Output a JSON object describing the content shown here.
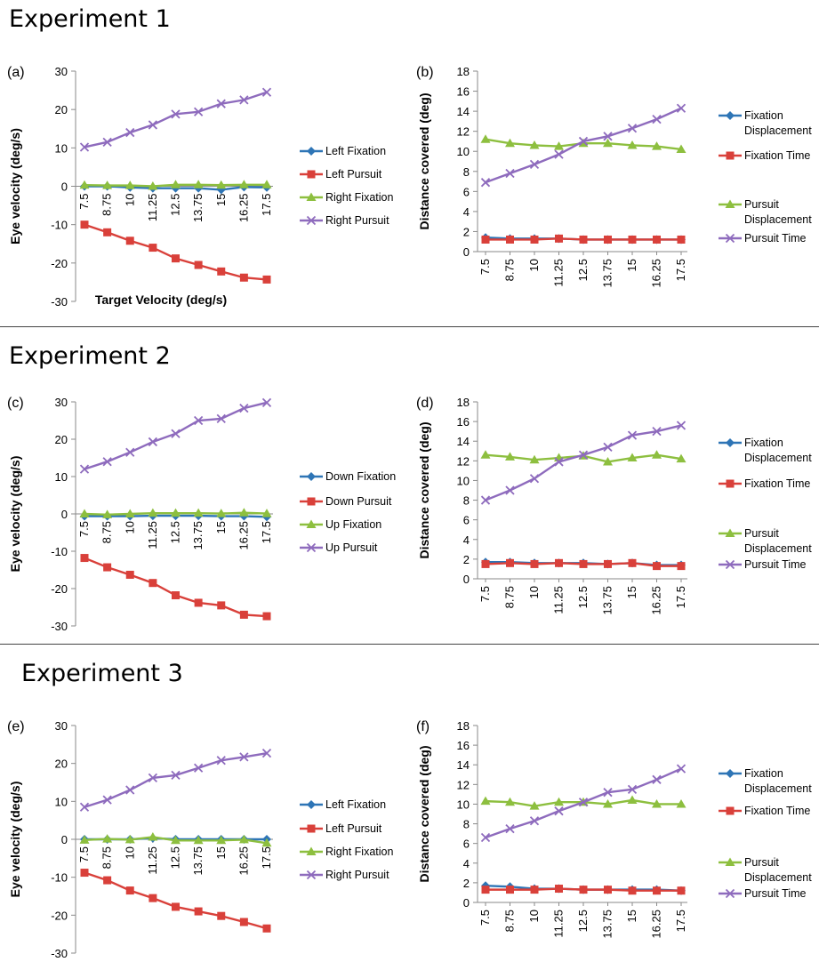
{
  "experiments": [
    {
      "title": "Experiment 1"
    },
    {
      "title": "Experiment 2"
    },
    {
      "title": "Experiment 3"
    }
  ],
  "series_colors": {
    "fixation_blue": "#2e75b6",
    "pursuit_red": "#d9403a",
    "fixation_green": "#8dbf3f",
    "pursuit_purple": "#8e6bbd"
  },
  "chart_data": [
    {
      "panel": "(a)",
      "type": "line",
      "ylabel": "Eye velocity (deg/s)",
      "xlabel": "Target Velocity (deg/s)",
      "ylim": [
        -30,
        30
      ],
      "yticks": [
        -30,
        -20,
        -10,
        0,
        10,
        20,
        30
      ],
      "categories": [
        "7.5",
        "8.75",
        "10",
        "11.25",
        "12.5",
        "13.75",
        "15",
        "16.25",
        "17.5"
      ],
      "legend": "right",
      "grid": false,
      "series": [
        {
          "name": "Left Fixation",
          "color": "#2e75b6",
          "marker": "diamond",
          "values": [
            0,
            0,
            -0.3,
            -0.5,
            -0.5,
            -0.5,
            -0.9,
            -0.2,
            -0.3
          ]
        },
        {
          "name": "Left Pursuit",
          "color": "#d9403a",
          "marker": "square",
          "values": [
            -10,
            -12,
            -14.2,
            -16,
            -18.8,
            -20.5,
            -22.2,
            -23.8,
            -24.3
          ]
        },
        {
          "name": "Right Fixation",
          "color": "#8dbf3f",
          "marker": "triangle",
          "values": [
            0.3,
            0.2,
            0.2,
            0,
            0.4,
            0.4,
            0.3,
            0.4,
            0.4
          ]
        },
        {
          "name": "Right Pursuit",
          "color": "#8e6bbd",
          "marker": "x",
          "values": [
            10.2,
            11.5,
            14,
            16,
            18.8,
            19.4,
            21.5,
            22.5,
            24.5
          ]
        }
      ]
    },
    {
      "panel": "(b)",
      "type": "line",
      "ylabel": "Distance covered (deg)",
      "xlabel": "",
      "ylim": [
        0,
        18
      ],
      "yticks": [
        0,
        2,
        4,
        6,
        8,
        10,
        12,
        14,
        16,
        18
      ],
      "categories": [
        "7.5",
        "8.75",
        "10",
        "11.25",
        "12.5",
        "13.75",
        "15",
        "16.25",
        "17.5"
      ],
      "legend": "right",
      "grid": false,
      "series": [
        {
          "name": "Fixation Displacement",
          "color": "#2e75b6",
          "marker": "diamond",
          "values": [
            1.4,
            1.3,
            1.3,
            1.3,
            1.2,
            1.2,
            1.2,
            1.2,
            1.2
          ]
        },
        {
          "name": "Fixation Time",
          "color": "#d9403a",
          "marker": "square",
          "values": [
            1.2,
            1.2,
            1.2,
            1.3,
            1.2,
            1.2,
            1.2,
            1.2,
            1.2
          ]
        },
        {
          "name": "Pursuit Displacement",
          "color": "#8dbf3f",
          "marker": "triangle",
          "values": [
            11.2,
            10.8,
            10.6,
            10.5,
            10.8,
            10.8,
            10.6,
            10.5,
            10.2
          ]
        },
        {
          "name": "Pursuit Time",
          "color": "#8e6bbd",
          "marker": "x",
          "values": [
            6.9,
            7.8,
            8.7,
            9.7,
            11,
            11.5,
            12.3,
            13.2,
            14.3
          ]
        }
      ]
    },
    {
      "panel": "(c)",
      "type": "line",
      "ylabel": "Eye velocity (deg/s)",
      "xlabel": "",
      "ylim": [
        -30,
        30
      ],
      "yticks": [
        -30,
        -20,
        -10,
        0,
        10,
        20,
        30
      ],
      "categories": [
        "7.5",
        "8.75",
        "10",
        "11.25",
        "12.5",
        "13.75",
        "15",
        "16.25",
        "17.5"
      ],
      "legend": "right",
      "grid": false,
      "series": [
        {
          "name": "Down Fixation",
          "color": "#2e75b6",
          "marker": "diamond",
          "values": [
            -0.6,
            -0.6,
            -0.6,
            -0.5,
            -0.5,
            -0.5,
            -0.6,
            -0.6,
            -0.8
          ]
        },
        {
          "name": "Down Pursuit",
          "color": "#d9403a",
          "marker": "square",
          "values": [
            -11.8,
            -14.3,
            -16.3,
            -18.5,
            -21.8,
            -23.8,
            -24.5,
            -27,
            -27.4
          ]
        },
        {
          "name": "Up Fixation",
          "color": "#8dbf3f",
          "marker": "triangle",
          "values": [
            0,
            -0.2,
            0,
            0.2,
            0.2,
            0.2,
            0.1,
            0.3,
            0.1
          ]
        },
        {
          "name": "Up Pursuit",
          "color": "#8e6bbd",
          "marker": "x",
          "values": [
            12,
            14,
            16.5,
            19.3,
            21.5,
            25,
            25.5,
            28.3,
            29.8
          ]
        }
      ]
    },
    {
      "panel": "(d)",
      "type": "line",
      "ylabel": "Distance covered (deg)",
      "xlabel": "",
      "ylim": [
        0,
        18
      ],
      "yticks": [
        0,
        2,
        4,
        6,
        8,
        10,
        12,
        14,
        16,
        18
      ],
      "categories": [
        "7.5",
        "8.75",
        "10",
        "11.25",
        "12.5",
        "13.75",
        "15",
        "16.25",
        "17.5"
      ],
      "legend": "right",
      "grid": false,
      "series": [
        {
          "name": "Fixation Displacement",
          "color": "#2e75b6",
          "marker": "diamond",
          "values": [
            1.7,
            1.7,
            1.6,
            1.6,
            1.6,
            1.5,
            1.6,
            1.4,
            1.4
          ]
        },
        {
          "name": "Fixation Time",
          "color": "#d9403a",
          "marker": "square",
          "values": [
            1.5,
            1.6,
            1.5,
            1.6,
            1.5,
            1.5,
            1.6,
            1.3,
            1.3
          ]
        },
        {
          "name": "Pursuit Displacement",
          "color": "#8dbf3f",
          "marker": "triangle",
          "values": [
            12.6,
            12.4,
            12.1,
            12.3,
            12.5,
            11.9,
            12.3,
            12.6,
            12.2
          ]
        },
        {
          "name": "Pursuit Time",
          "color": "#8e6bbd",
          "marker": "x",
          "values": [
            8,
            9,
            10.2,
            11.9,
            12.6,
            13.4,
            14.6,
            15,
            15.6
          ]
        }
      ]
    },
    {
      "panel": "(e)",
      "type": "line",
      "ylabel": "Eye velocity (deg/s)",
      "xlabel": "",
      "ylim": [
        -30,
        30
      ],
      "yticks": [
        -30,
        -20,
        -10,
        0,
        10,
        20,
        30
      ],
      "categories": [
        "7.5",
        "8.75",
        "10",
        "11.25",
        "12.5",
        "13.75",
        "15",
        "16.25",
        "17.5"
      ],
      "legend": "right",
      "grid": false,
      "series": [
        {
          "name": "Left Fixation",
          "color": "#2e75b6",
          "marker": "diamond",
          "values": [
            0,
            0,
            0,
            0.3,
            0,
            0,
            0,
            0,
            0
          ]
        },
        {
          "name": "Left Pursuit",
          "color": "#d9403a",
          "marker": "square",
          "values": [
            -8.8,
            -10.8,
            -13.5,
            -15.5,
            -17.8,
            -19,
            -20.2,
            -21.8,
            -23.5
          ]
        },
        {
          "name": "Right Fixation",
          "color": "#8dbf3f",
          "marker": "triangle",
          "values": [
            -0.2,
            0.1,
            -0.1,
            0.6,
            -0.3,
            -0.3,
            -0.3,
            -0.1,
            -1
          ]
        },
        {
          "name": "Right Pursuit",
          "color": "#8e6bbd",
          "marker": "x",
          "values": [
            8.5,
            10.4,
            13,
            16.2,
            16.9,
            18.8,
            20.8,
            21.7,
            22.7
          ]
        }
      ]
    },
    {
      "panel": "(f)",
      "type": "line",
      "ylabel": "Distance covered (deg)",
      "xlabel": "",
      "ylim": [
        0,
        18
      ],
      "yticks": [
        0,
        2,
        4,
        6,
        8,
        10,
        12,
        14,
        16,
        18
      ],
      "categories": [
        "7.5",
        "8.75",
        "10",
        "11.25",
        "12.5",
        "13.75",
        "15",
        "16.25",
        "17.5"
      ],
      "legend": "right",
      "grid": false,
      "series": [
        {
          "name": "Fixation Displacement",
          "color": "#2e75b6",
          "marker": "diamond",
          "values": [
            1.7,
            1.6,
            1.4,
            1.4,
            1.3,
            1.3,
            1.3,
            1.3,
            1.2
          ]
        },
        {
          "name": "Fixation Time",
          "color": "#d9403a",
          "marker": "square",
          "values": [
            1.3,
            1.3,
            1.3,
            1.4,
            1.3,
            1.3,
            1.2,
            1.2,
            1.2
          ]
        },
        {
          "name": "Pursuit Displacement",
          "color": "#8dbf3f",
          "marker": "triangle",
          "values": [
            10.3,
            10.2,
            9.8,
            10.2,
            10.2,
            10,
            10.4,
            10,
            10
          ]
        },
        {
          "name": "Pursuit Time",
          "color": "#8e6bbd",
          "marker": "x",
          "values": [
            6.6,
            7.5,
            8.3,
            9.3,
            10.2,
            11.2,
            11.5,
            12.5,
            13.6
          ]
        }
      ]
    }
  ]
}
